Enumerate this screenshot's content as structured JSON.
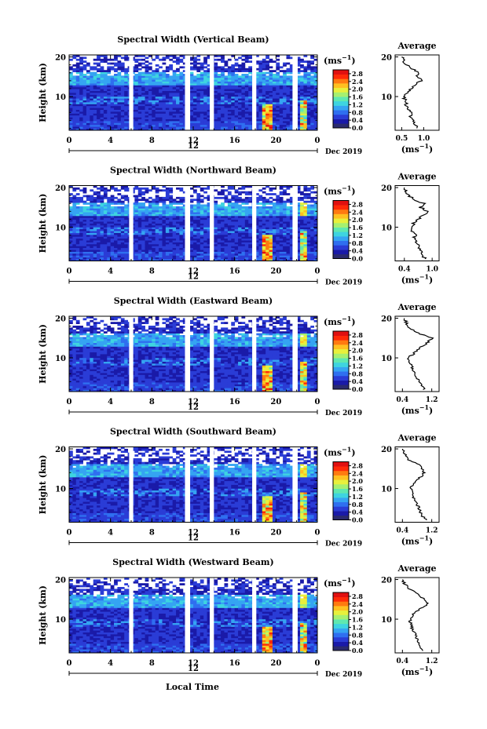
{
  "figure": {
    "xlabel": "Local Time",
    "date_label": "Dec 2019",
    "ylabel": "Height (km)",
    "avg_title": "Average",
    "cbar_unit_base": "(ms",
    "cbar_unit_exp": "−1",
    "cbar_unit_close": ")",
    "avg_unit_base": "(ms",
    "avg_unit_exp": "−1",
    "avg_unit_close": ")"
  },
  "colors": {
    "colormap": [
      "#2b2b6e",
      "#1a1aa8",
      "#2a3cd6",
      "#2f6ff0",
      "#35a4f2",
      "#3ed4e0",
      "#5fe8b0",
      "#a6f070",
      "#e8f03c",
      "#ffc020",
      "#ff7a10",
      "#ff2a08",
      "#e01010"
    ],
    "gap": "#ffffff"
  },
  "chart_data": [
    {
      "type": "heatmap",
      "title": "Spectral Width (Vertical Beam)",
      "x_ticks": [
        "0",
        "4",
        "8",
        "12",
        "16",
        "20",
        "0"
      ],
      "x_day_marker": "12",
      "xlim": [
        0,
        24
      ],
      "y_ticks": [
        "20",
        "10"
      ],
      "ylim": [
        1.5,
        20.5
      ],
      "colorbar_ticks": [
        "2.8",
        "2.4",
        "2.0",
        "1.6",
        "1.2",
        "0.8",
        "0.4",
        "0.0"
      ],
      "colorbar_range": [
        0,
        3.0
      ],
      "data_gaps_hours": [
        [
          5.8,
          6.2
        ],
        [
          11.2,
          11.7
        ],
        [
          13.6,
          14.0
        ],
        [
          17.7,
          18.1
        ],
        [
          21.6,
          22.1
        ]
      ],
      "avg_x_ticks": [
        "0.5",
        "1.0"
      ],
      "avg_xlim": [
        0.35,
        1.35
      ],
      "avg_profile": {
        "height_km": [
          2,
          3,
          4,
          5,
          6,
          7,
          8,
          9,
          10,
          11,
          12,
          13,
          14,
          15,
          16,
          17,
          18,
          19,
          20
        ],
        "value": [
          0.85,
          0.8,
          0.75,
          0.7,
          0.72,
          0.65,
          0.6,
          0.58,
          0.55,
          0.62,
          0.7,
          0.8,
          0.95,
          0.85,
          0.9,
          0.75,
          0.6,
          0.55,
          0.5
        ]
      }
    },
    {
      "type": "heatmap",
      "title": "Spectral Width (Northward Beam)",
      "x_ticks": [
        "0",
        "4",
        "8",
        "12",
        "16",
        "20",
        "0"
      ],
      "x_day_marker": "12",
      "xlim": [
        0,
        24
      ],
      "y_ticks": [
        "20",
        "10"
      ],
      "ylim": [
        1.5,
        20.5
      ],
      "colorbar_ticks": [
        "2.8",
        "2.4",
        "2.0",
        "1.6",
        "1.2",
        "0.8",
        "0.4",
        "0.0"
      ],
      "colorbar_range": [
        0,
        3.0
      ],
      "data_gaps_hours": [
        [
          5.8,
          6.2
        ],
        [
          11.2,
          11.7
        ],
        [
          13.6,
          14.0
        ],
        [
          17.7,
          18.1
        ],
        [
          21.6,
          22.1
        ]
      ],
      "avg_x_ticks": [
        "0.4",
        "1.0"
      ],
      "avg_xlim": [
        0.2,
        1.15
      ],
      "avg_profile": {
        "height_km": [
          2,
          3,
          4,
          5,
          6,
          7,
          8,
          9,
          10,
          11,
          12,
          13,
          14,
          15,
          16,
          17,
          18,
          19,
          20
        ],
        "value": [
          0.85,
          0.8,
          0.75,
          0.72,
          0.7,
          0.6,
          0.65,
          0.55,
          0.58,
          0.6,
          0.72,
          0.8,
          0.9,
          0.75,
          0.82,
          0.6,
          0.5,
          0.45,
          0.4
        ]
      }
    },
    {
      "type": "heatmap",
      "title": "Spectral Width (Eastward Beam)",
      "x_ticks": [
        "0",
        "4",
        "8",
        "12",
        "16",
        "20",
        "0"
      ],
      "x_day_marker": "12",
      "xlim": [
        0,
        24
      ],
      "y_ticks": [
        "20",
        "10"
      ],
      "ylim": [
        1.5,
        20.5
      ],
      "colorbar_ticks": [
        "2.8",
        "2.4",
        "2.0",
        "1.6",
        "1.2",
        "0.8",
        "0.4",
        "0.0"
      ],
      "colorbar_range": [
        0,
        3.0
      ],
      "data_gaps_hours": [
        [
          5.8,
          6.2
        ],
        [
          11.2,
          11.7
        ],
        [
          13.6,
          14.0
        ],
        [
          17.7,
          18.1
        ],
        [
          21.6,
          22.1
        ]
      ],
      "avg_x_ticks": [
        "0.4",
        "1.2"
      ],
      "avg_xlim": [
        0.2,
        1.4
      ],
      "avg_profile": {
        "height_km": [
          2,
          3,
          4,
          5,
          6,
          7,
          8,
          9,
          10,
          11,
          12,
          13,
          14,
          15,
          16,
          17,
          18,
          19,
          20
        ],
        "value": [
          1.0,
          0.95,
          0.85,
          0.8,
          0.75,
          0.7,
          0.65,
          0.6,
          0.55,
          0.7,
          0.8,
          0.95,
          1.1,
          1.2,
          0.9,
          0.7,
          0.55,
          0.5,
          0.45
        ]
      }
    },
    {
      "type": "heatmap",
      "title": "Spectral Width (Southward Beam)",
      "x_ticks": [
        "0",
        "4",
        "8",
        "12",
        "16",
        "20",
        "0"
      ],
      "x_day_marker": "12",
      "xlim": [
        0,
        24
      ],
      "y_ticks": [
        "20",
        "10"
      ],
      "ylim": [
        1.5,
        20.5
      ],
      "colorbar_ticks": [
        "2.8",
        "2.4",
        "2.0",
        "1.6",
        "1.2",
        "0.8",
        "0.4",
        "0.0"
      ],
      "colorbar_range": [
        0,
        3.0
      ],
      "data_gaps_hours": [
        [
          5.8,
          6.2
        ],
        [
          11.2,
          11.7
        ],
        [
          13.6,
          14.0
        ],
        [
          17.7,
          18.1
        ],
        [
          21.6,
          22.1
        ]
      ],
      "avg_x_ticks": [
        "0.4",
        "1.2"
      ],
      "avg_xlim": [
        0.2,
        1.4
      ],
      "avg_profile": {
        "height_km": [
          2,
          3,
          4,
          5,
          6,
          7,
          8,
          9,
          10,
          11,
          12,
          13,
          14,
          15,
          16,
          17,
          18,
          19,
          20
        ],
        "value": [
          1.05,
          0.95,
          0.9,
          0.85,
          0.8,
          0.75,
          0.7,
          0.65,
          0.62,
          0.7,
          0.8,
          0.9,
          1.0,
          0.95,
          0.85,
          0.6,
          0.5,
          0.45,
          0.4
        ]
      }
    },
    {
      "type": "heatmap",
      "title": "Spectral Width (Westward Beam)",
      "x_ticks": [
        "0",
        "4",
        "8",
        "12",
        "16",
        "20",
        "0"
      ],
      "x_day_marker": "12",
      "xlim": [
        0,
        24
      ],
      "y_ticks": [
        "20",
        "10"
      ],
      "ylim": [
        1.5,
        20.5
      ],
      "colorbar_ticks": [
        "2.8",
        "2.4",
        "2.0",
        "1.6",
        "1.2",
        "0.8",
        "0.4",
        "0.0"
      ],
      "colorbar_range": [
        0,
        3.0
      ],
      "data_gaps_hours": [
        [
          5.8,
          6.2
        ],
        [
          11.2,
          11.7
        ],
        [
          13.6,
          14.0
        ],
        [
          17.7,
          18.1
        ],
        [
          21.6,
          22.1
        ]
      ],
      "avg_x_ticks": [
        "0.4",
        "1.2"
      ],
      "avg_xlim": [
        0.2,
        1.4
      ],
      "avg_profile": {
        "height_km": [
          2,
          3,
          4,
          5,
          6,
          7,
          8,
          9,
          10,
          11,
          12,
          13,
          14,
          15,
          16,
          17,
          18,
          19,
          20
        ],
        "value": [
          0.95,
          0.9,
          0.85,
          0.8,
          0.75,
          0.7,
          0.65,
          0.62,
          0.6,
          0.68,
          0.8,
          0.95,
          1.1,
          1.0,
          0.85,
          0.7,
          0.55,
          0.45,
          0.4
        ]
      }
    }
  ]
}
